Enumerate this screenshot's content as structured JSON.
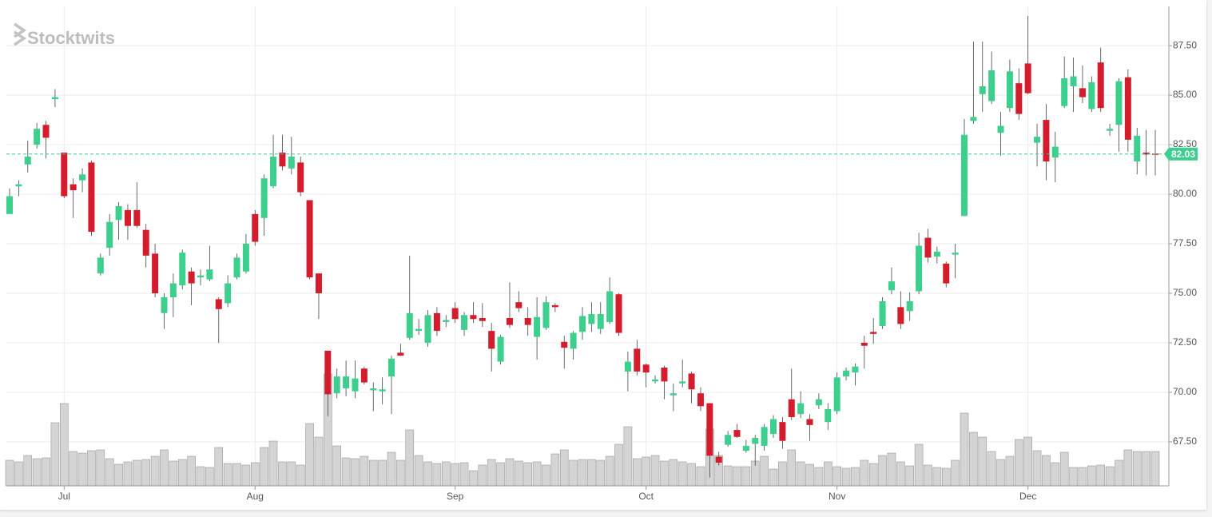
{
  "chart_data": {
    "type": "candlestick",
    "watermark": "Stocktwits",
    "last_price": 82.03,
    "categories": [
      null,
      null,
      null,
      null,
      null,
      null,
      "Jul",
      null,
      null,
      null,
      null,
      null,
      null,
      null,
      null,
      null,
      null,
      null,
      null,
      null,
      null,
      null,
      null,
      null,
      null,
      null,
      null,
      "Aug",
      null,
      null,
      null,
      null,
      null,
      null,
      null,
      null,
      null,
      null,
      null,
      null,
      null,
      null,
      null,
      null,
      null,
      null,
      null,
      null,
      null,
      "Sep",
      null,
      null,
      null,
      null,
      null,
      null,
      null,
      null,
      null,
      null,
      null,
      null,
      null,
      null,
      null,
      null,
      null,
      null,
      null,
      null,
      "Oct",
      null,
      null,
      null,
      null,
      null,
      null,
      null,
      null,
      null,
      null,
      null,
      null,
      null,
      null,
      null,
      null,
      null,
      null,
      null,
      null,
      "Nov",
      null,
      null,
      null,
      null,
      null,
      null,
      null,
      null,
      null,
      null,
      null,
      null,
      null,
      null,
      null,
      null,
      null,
      null,
      null,
      null,
      "Dec",
      null,
      null,
      null,
      null,
      null,
      null,
      null,
      null,
      null,
      null,
      null,
      null,
      null,
      null
    ],
    "open": [
      79.0,
      80.4,
      81.5,
      82.5,
      83.5,
      84.8,
      82.1,
      80.5,
      80.7,
      81.6,
      76.0,
      77.3,
      78.7,
      79.2,
      79.2,
      78.2,
      77.0,
      74.0,
      74.8,
      75.4,
      76.1,
      75.8,
      75.7,
      74.7,
      74.5,
      75.8,
      76.1,
      79.0,
      78.8,
      80.4,
      82.1,
      81.3,
      81.6,
      79.7,
      76.0,
      72.1,
      69.95,
      70.2,
      70.05,
      71.2,
      70.1,
      70.05,
      70.8,
      72.0,
      72.75,
      73.1,
      72.5,
      74.0,
      73.55,
      74.25,
      73.15,
      73.9,
      73.75,
      73.1,
      71.55,
      73.75,
      74.55,
      73.75,
      72.8,
      73.25,
      74.4,
      72.55,
      72.2,
      73.05,
      73.45,
      73.2,
      73.55,
      74.95,
      71.05,
      72.2,
      71.4,
      70.55,
      71.25,
      69.85,
      70.45,
      70.95,
      69.95,
      69.45,
      66.75,
      67.35,
      68.1,
      67.05,
      67.4,
      67.3,
      67.9,
      68.5,
      69.65,
      68.9,
      68.65,
      69.35,
      68.5,
      69.05,
      70.8,
      71.0,
      72.5,
      73.05,
      73.35,
      75.15,
      74.3,
      74.1,
      75.1,
      77.8,
      76.85,
      76.5,
      76.95,
      78.9,
      83.7,
      85.05,
      84.7,
      83.1,
      84.35,
      85.6,
      86.6,
      82.6,
      83.75,
      81.85,
      84.45,
      85.45,
      85.35,
      84.3,
      86.65,
      83.2,
      83.5,
      85.9,
      81.65,
      82.1,
      82.05
    ],
    "high": [
      80.3,
      80.7,
      82.7,
      83.6,
      83.7,
      85.3,
      82.1,
      80.8,
      81.3,
      81.7,
      77.0,
      79.0,
      79.6,
      79.5,
      80.6,
      78.5,
      77.5,
      75.0,
      76.0,
      77.2,
      76.3,
      76.2,
      77.4,
      74.8,
      75.9,
      77.0,
      78.0,
      79.2,
      81.0,
      83.0,
      83.0,
      82.9,
      81.9,
      79.7,
      76.0,
      72.1,
      71.2,
      71.6,
      71.6,
      71.3,
      70.5,
      70.75,
      71.85,
      72.45,
      76.9,
      73.7,
      74.15,
      74.3,
      73.9,
      74.55,
      74.05,
      74.55,
      74.5,
      73.5,
      72.9,
      75.55,
      75.1,
      74.3,
      74.8,
      74.85,
      74.5,
      72.85,
      73.1,
      74.3,
      74.55,
      74.55,
      75.8,
      75.0,
      72.05,
      72.65,
      71.45,
      70.85,
      71.35,
      70.45,
      71.65,
      71.05,
      70.25,
      69.45,
      67.0,
      68.05,
      68.4,
      67.6,
      67.85,
      68.4,
      68.85,
      68.75,
      71.2,
      70.05,
      68.9,
      69.95,
      69.45,
      71.0,
      71.25,
      71.45,
      72.85,
      73.75,
      74.8,
      76.3,
      75.1,
      75.05,
      78.05,
      78.25,
      77.35,
      76.6,
      77.5,
      83.8,
      87.7,
      87.7,
      87.2,
      84.15,
      86.8,
      86.35,
      89.0,
      83.55,
      84.55,
      83.15,
      86.95,
      86.9,
      86.5,
      85.95,
      87.4,
      83.55,
      85.85,
      86.3,
      83.35,
      83.25,
      83.25
    ],
    "low": [
      79.0,
      79.9,
      81.1,
      82.3,
      81.8,
      84.4,
      79.8,
      78.8,
      80.1,
      77.9,
      75.9,
      76.9,
      77.7,
      77.7,
      78.3,
      76.3,
      74.8,
      73.2,
      73.8,
      75.2,
      74.4,
      75.4,
      75.6,
      72.5,
      74.3,
      75.7,
      76.0,
      77.4,
      77.9,
      80.3,
      81.2,
      81.0,
      79.9,
      75.7,
      73.7,
      68.8,
      69.7,
      69.8,
      69.7,
      70.4,
      69.05,
      69.4,
      68.9,
      71.85,
      72.65,
      72.9,
      72.3,
      72.85,
      73.3,
      73.5,
      72.85,
      73.5,
      73.3,
      71.05,
      71.4,
      73.25,
      74.05,
      72.85,
      71.65,
      73.15,
      74.05,
      71.2,
      71.65,
      72.65,
      73.05,
      72.95,
      73.45,
      72.85,
      70.05,
      70.85,
      70.25,
      70.45,
      69.65,
      69.05,
      70.25,
      69.45,
      69.05,
      65.7,
      66.3,
      67.25,
      67.7,
      66.95,
      66.3,
      67.05,
      67.7,
      67.15,
      68.6,
      68.7,
      67.55,
      69.15,
      68.1,
      68.9,
      70.6,
      70.35,
      71.2,
      72.45,
      73.2,
      74.95,
      73.2,
      73.6,
      74.95,
      76.55,
      76.5,
      75.3,
      75.75,
      78.9,
      83.55,
      84.15,
      84.55,
      81.95,
      84.15,
      83.75,
      85.05,
      81.4,
      80.7,
      80.6,
      84.35,
      84.15,
      84.6,
      84.15,
      84.15,
      82.95,
      82.15,
      82.15,
      81.0,
      80.95,
      80.95
    ],
    "close": [
      79.9,
      80.5,
      81.9,
      83.3,
      82.85,
      84.9,
      79.9,
      80.2,
      81.0,
      78.1,
      76.8,
      78.6,
      79.4,
      78.4,
      78.4,
      76.9,
      75.0,
      74.8,
      75.5,
      77.05,
      75.5,
      75.9,
      76.2,
      74.2,
      75.5,
      76.8,
      77.5,
      77.6,
      80.8,
      81.9,
      81.4,
      81.9,
      80.1,
      75.8,
      75.0,
      69.9,
      70.8,
      70.8,
      70.7,
      70.5,
      70.2,
      70.15,
      71.7,
      71.85,
      74.0,
      73.2,
      73.9,
      73.1,
      73.65,
      73.7,
      73.9,
      73.7,
      73.6,
      72.2,
      72.8,
      73.4,
      74.25,
      73.4,
      73.8,
      74.55,
      74.3,
      72.25,
      73.0,
      73.85,
      73.95,
      73.95,
      75.1,
      73.0,
      71.55,
      71.05,
      71.0,
      70.65,
      70.55,
      69.95,
      70.55,
      70.15,
      69.3,
      66.8,
      66.45,
      67.85,
      67.75,
      67.3,
      67.7,
      68.25,
      68.65,
      67.55,
      68.75,
      69.45,
      68.35,
      69.65,
      69.15,
      70.75,
      71.1,
      71.3,
      72.35,
      72.95,
      74.6,
      75.6,
      73.45,
      74.6,
      77.4,
      76.8,
      77.1,
      75.5,
      77.05,
      83.0,
      83.9,
      85.45,
      86.25,
      83.45,
      86.2,
      84.05,
      85.1,
      82.9,
      81.65,
      82.4,
      85.85,
      85.95,
      84.9,
      85.65,
      84.35,
      83.3,
      85.7,
      82.75,
      82.95,
      82.0,
      82.03
    ],
    "volume": [
      32,
      30,
      38,
      34,
      35,
      79,
      103,
      43,
      41,
      44,
      45,
      34,
      27,
      30,
      32,
      33,
      37,
      45,
      31,
      33,
      37,
      24,
      23,
      48,
      28,
      28,
      26,
      29,
      48,
      56,
      30,
      30,
      26,
      78,
      61,
      140,
      50,
      35,
      34,
      37,
      32,
      32,
      42,
      32,
      70,
      38,
      30,
      28,
      30,
      28,
      29,
      19,
      26,
      33,
      29,
      34,
      31,
      29,
      30,
      26,
      40,
      45,
      32,
      33,
      33,
      32,
      37,
      52,
      74,
      34,
      36,
      38,
      31,
      33,
      30,
      28,
      24,
      71,
      38,
      25,
      24,
      24,
      31,
      37,
      21,
      30,
      45,
      30,
      27,
      23,
      30,
      24,
      22,
      23,
      32,
      28,
      38,
      41,
      30,
      25,
      52,
      26,
      23,
      22,
      32,
      91,
      67,
      61,
      43,
      33,
      37,
      58,
      61,
      44,
      38,
      29,
      42,
      23,
      23,
      25,
      26,
      24,
      32,
      45,
      43,
      43,
      43
    ],
    "up_color": "#3ccf8e",
    "down_color": "#d41c2c",
    "volume_color": "#d4d4d4",
    "ylim": [
      65.28,
      89.48
    ],
    "yticks": [
      {
        "value": 67.5,
        "label": "67.50"
      },
      {
        "value": 70,
        "label": "70.00"
      },
      {
        "value": 72.5,
        "label": "72.50"
      },
      {
        "value": 75,
        "label": "75.00"
      },
      {
        "value": 77.5,
        "label": "77.50"
      },
      {
        "value": 80,
        "label": "80.00"
      },
      {
        "value": 82.5,
        "label": "82.50"
      },
      {
        "value": 85,
        "label": "85.00"
      },
      {
        "value": 87.5,
        "label": "87.50"
      }
    ],
    "grid": true
  }
}
